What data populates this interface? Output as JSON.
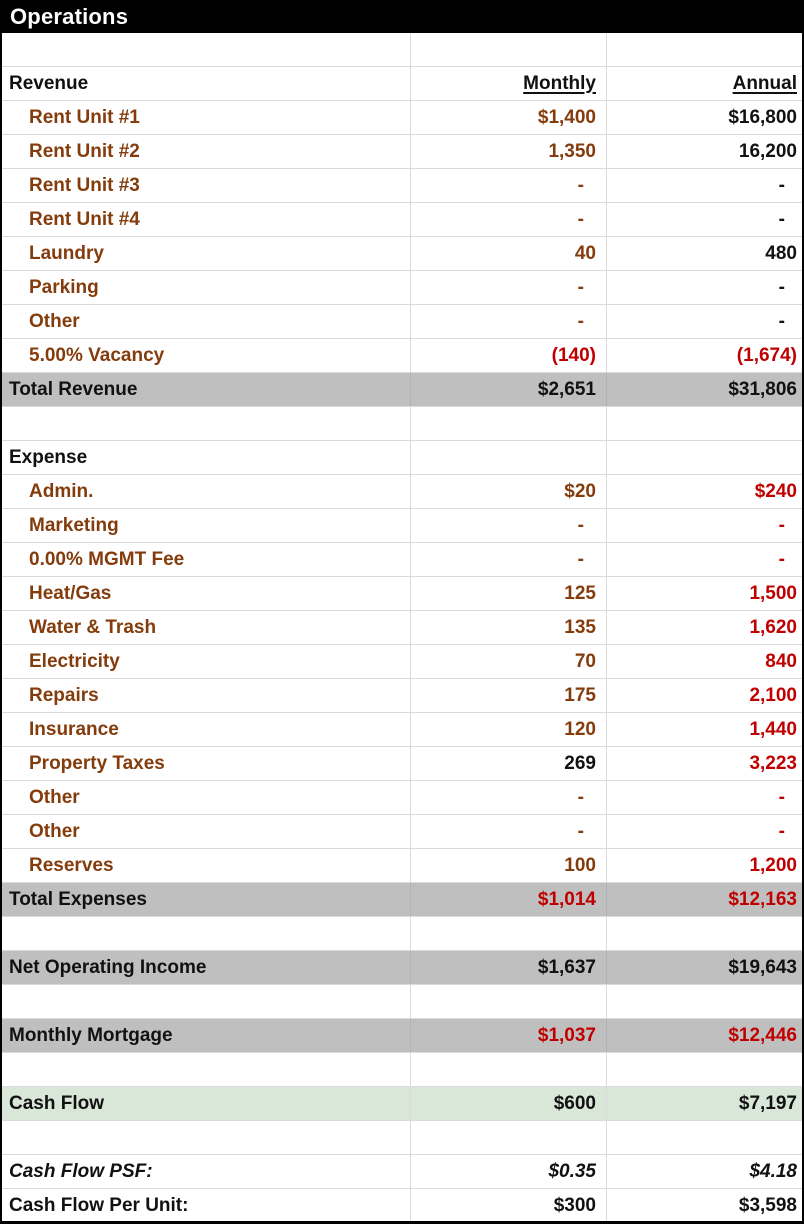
{
  "title": "Operations",
  "colors": {
    "brown": "#843C0C",
    "red": "#C00000",
    "black": "#111111",
    "gray_row": "#BFBFBF",
    "green_row": "#D9E7D9",
    "title_bg": "#000000",
    "title_text": "#FFFFFF"
  },
  "column_headers": {
    "monthly": "Monthly",
    "annual": "Annual"
  },
  "rows": [
    {
      "style": "blank",
      "label": "",
      "monthly": "",
      "annual": ""
    },
    {
      "style": "colhead",
      "label": "Revenue",
      "monthly": "Monthly",
      "annual": "Annual",
      "m": "black",
      "a": "black"
    },
    {
      "style": "item",
      "label": "Rent Unit #1",
      "monthly": "$1,400",
      "annual": "$16,800",
      "m": "brown",
      "a": "black"
    },
    {
      "style": "item",
      "label": "Rent Unit #2",
      "monthly": "1,350",
      "annual": "16,200",
      "m": "brown",
      "a": "black"
    },
    {
      "style": "item",
      "label": "Rent Unit #3",
      "monthly": "-",
      "annual": "-",
      "m": "brown",
      "a": "black"
    },
    {
      "style": "item",
      "label": "Rent Unit #4",
      "monthly": "-",
      "annual": "-",
      "m": "brown",
      "a": "black"
    },
    {
      "style": "item",
      "label": "Laundry",
      "monthly": "40",
      "annual": "480",
      "m": "brown",
      "a": "black"
    },
    {
      "style": "item",
      "label": "Parking",
      "monthly": "-",
      "annual": "-",
      "m": "brown",
      "a": "black"
    },
    {
      "style": "item",
      "label": "Other",
      "monthly": "-",
      "annual": "-",
      "m": "brown",
      "a": "black"
    },
    {
      "style": "item",
      "label": "5.00% Vacancy",
      "monthly": "(140)",
      "annual": "(1,674)",
      "m": "red",
      "a": "red"
    },
    {
      "style": "total",
      "bg": "gray",
      "label": "Total Revenue",
      "monthly": "$2,651",
      "annual": "$31,806",
      "m": "black",
      "a": "black"
    },
    {
      "style": "blank",
      "label": "",
      "monthly": "",
      "annual": ""
    },
    {
      "style": "section",
      "label": "Expense",
      "monthly": "",
      "annual": ""
    },
    {
      "style": "item",
      "label": "Admin.",
      "monthly": "$20",
      "annual": "$240",
      "m": "brown",
      "a": "red"
    },
    {
      "style": "item",
      "label": "Marketing",
      "monthly": "-",
      "annual": "-",
      "m": "brown",
      "a": "red"
    },
    {
      "style": "item",
      "label": "0.00% MGMT Fee",
      "monthly": "-",
      "annual": "-",
      "m": "brown",
      "a": "red"
    },
    {
      "style": "item",
      "label": "Heat/Gas",
      "monthly": "125",
      "annual": "1,500",
      "m": "brown",
      "a": "red"
    },
    {
      "style": "item",
      "label": "Water & Trash",
      "monthly": "135",
      "annual": "1,620",
      "m": "brown",
      "a": "red"
    },
    {
      "style": "item",
      "label": "Electricity",
      "monthly": "70",
      "annual": "840",
      "m": "brown",
      "a": "red"
    },
    {
      "style": "item",
      "label": "Repairs",
      "monthly": "175",
      "annual": "2,100",
      "m": "brown",
      "a": "red"
    },
    {
      "style": "item",
      "label": "Insurance",
      "monthly": "120",
      "annual": "1,440",
      "m": "brown",
      "a": "red"
    },
    {
      "style": "item",
      "label": "Property Taxes",
      "monthly": "269",
      "annual": "3,223",
      "m": "black",
      "a": "red"
    },
    {
      "style": "item",
      "label": "Other",
      "monthly": "-",
      "annual": "-",
      "m": "brown",
      "a": "red"
    },
    {
      "style": "item",
      "label": "Other",
      "monthly": "-",
      "annual": "-",
      "m": "brown",
      "a": "red"
    },
    {
      "style": "item",
      "label": "Reserves",
      "monthly": "100",
      "annual": "1,200",
      "m": "brown",
      "a": "red"
    },
    {
      "style": "total",
      "bg": "gray",
      "label": "Total Expenses",
      "monthly": "$1,014",
      "annual": "$12,163",
      "m": "red",
      "a": "red"
    },
    {
      "style": "blank",
      "label": "",
      "monthly": "",
      "annual": ""
    },
    {
      "style": "total",
      "bg": "gray",
      "label": "Net Operating Income",
      "monthly": "$1,637",
      "annual": "$19,643",
      "m": "black",
      "a": "black"
    },
    {
      "style": "blank",
      "label": "",
      "monthly": "",
      "annual": ""
    },
    {
      "style": "total",
      "bg": "gray",
      "label": "Monthly Mortgage",
      "monthly": "$1,037",
      "annual": "$12,446",
      "m": "red",
      "a": "red"
    },
    {
      "style": "blank",
      "label": "",
      "monthly": "",
      "annual": ""
    },
    {
      "style": "total",
      "bg": "green",
      "label": "Cash Flow",
      "monthly": "$600",
      "annual": "$7,197",
      "m": "black",
      "a": "black"
    },
    {
      "style": "blank",
      "label": "",
      "monthly": "",
      "annual": ""
    },
    {
      "style": "metric",
      "italic": true,
      "label": "Cash Flow PSF:",
      "monthly": "$0.35",
      "annual": "$4.18",
      "m": "black",
      "a": "black"
    },
    {
      "style": "metric",
      "label": "Cash Flow Per Unit:",
      "monthly": "$300",
      "annual": "$3,598",
      "m": "black",
      "a": "black"
    }
  ]
}
